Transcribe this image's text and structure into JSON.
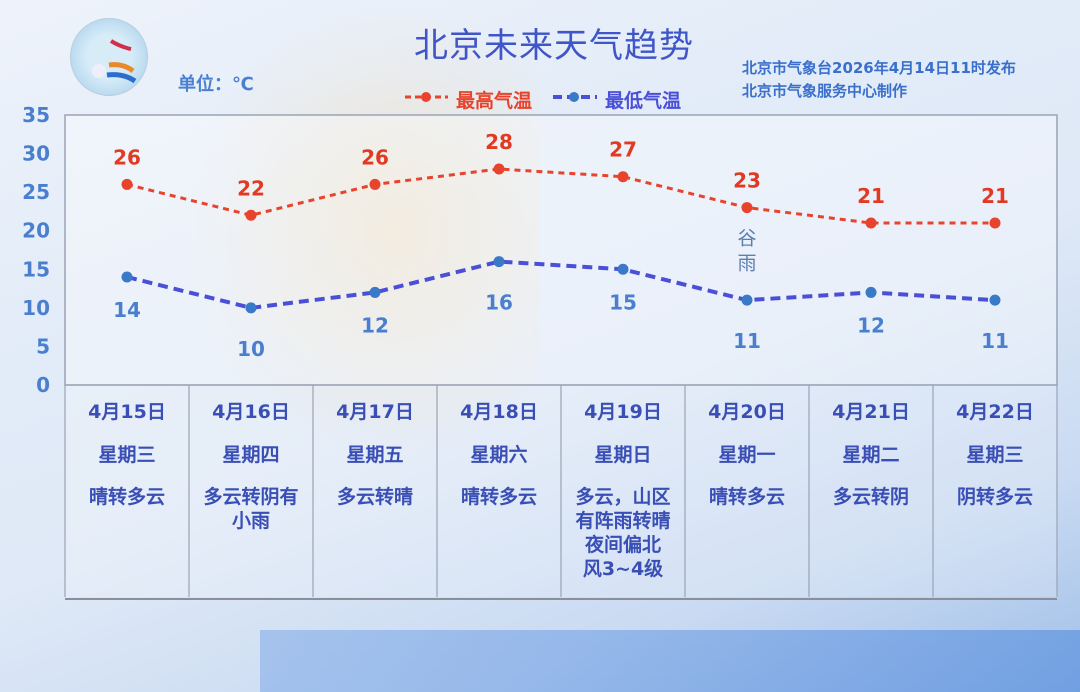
{
  "chart_data": {
    "type": "line",
    "title": "北京未来天气趋势",
    "unit_label": "单位：℃",
    "publisher_line1": "北京市气象台2026年4月14日11时发布",
    "publisher_line2": "北京市气象服务中心制作",
    "ylim": [
      0,
      35
    ],
    "yticks": [
      "0",
      "5",
      "10",
      "15",
      "20",
      "25",
      "30",
      "35"
    ],
    "grid": false,
    "legend": "top-center",
    "categories": [
      "4月15日",
      "4月16日",
      "4月17日",
      "4月18日",
      "4月19日",
      "4月20日",
      "4月21日",
      "4月22日"
    ],
    "weekdays": [
      "星期三",
      "星期四",
      "星期五",
      "星期六",
      "星期日",
      "星期一",
      "星期二",
      "星期三"
    ],
    "weather": [
      [
        "晴转多云"
      ],
      [
        "多云转阴有",
        "小雨"
      ],
      [
        "多云转晴"
      ],
      [
        "晴转多云"
      ],
      [
        "多云，山区",
        "有阵雨转晴",
        "夜间偏北",
        "风3~4级"
      ],
      [
        "晴转多云"
      ],
      [
        "多云转阴"
      ],
      [
        "阴转多云"
      ]
    ],
    "series": [
      {
        "name": "最高气温",
        "values": [
          26,
          22,
          26,
          28,
          27,
          23,
          21,
          21
        ],
        "color": "#e8432c"
      },
      {
        "name": "最低气温",
        "values": [
          14,
          10,
          12,
          16,
          15,
          11,
          12,
          11
        ],
        "color": "#4a4fd8"
      }
    ],
    "annotations": [
      {
        "category": "4月20日",
        "text": [
          "谷",
          "雨"
        ]
      }
    ]
  }
}
